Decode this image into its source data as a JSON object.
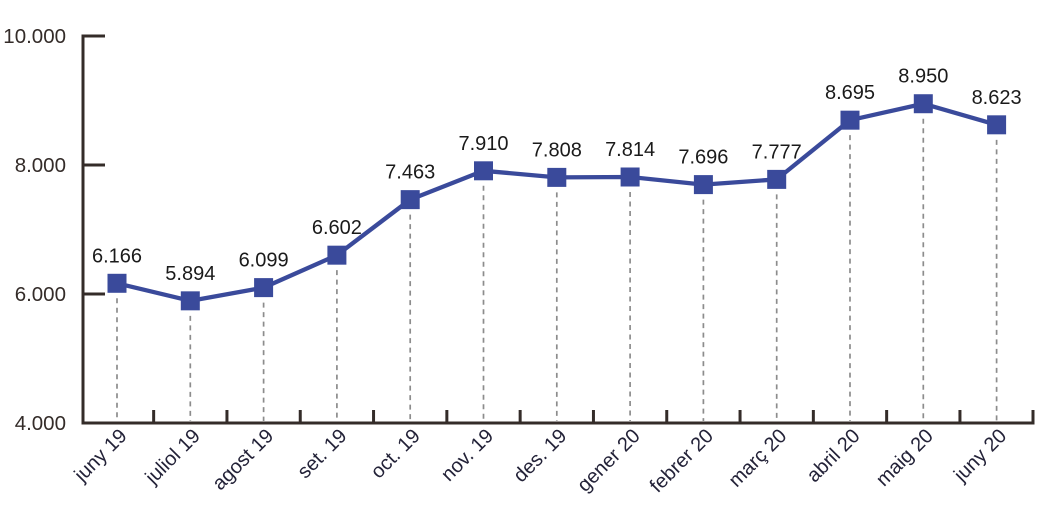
{
  "chart_data": {
    "type": "line",
    "title": "",
    "xlabel": "",
    "ylabel": "",
    "categories": [
      "juny 19",
      "juliol 19",
      "agost 19",
      "set. 19",
      "oct. 19",
      "nov. 19",
      "des. 19",
      "gener 20",
      "febrer 20",
      "març 20",
      "abril 20",
      "maig 20",
      "juny 20"
    ],
    "values": [
      6166,
      5894,
      6099,
      6602,
      7463,
      7910,
      7808,
      7814,
      7696,
      7777,
      8695,
      8950,
      8623
    ],
    "value_labels": [
      "6.166",
      "5.894",
      "6.099",
      "6.602",
      "7.463",
      "7.910",
      "7.808",
      "7.814",
      "7.696",
      "7.777",
      "8.695",
      "8.950",
      "8.623"
    ],
    "ylim": [
      4000,
      10000
    ],
    "y_ticks": [
      {
        "value": 4000,
        "label": "4.000"
      },
      {
        "value": 6000,
        "label": "6.000"
      },
      {
        "value": 8000,
        "label": "8.000"
      },
      {
        "value": 10000,
        "label": "10.000"
      }
    ],
    "grid": "off",
    "legend_position": "none",
    "marker_shape": "square",
    "drop_lines": "dashed-vertical",
    "colors": {
      "series_line": "#3a4a9b",
      "marker_fill": "#3a4a9b",
      "axis": "#342c29",
      "y_tick_label": "#342c29",
      "x_tick_label": "#232238",
      "value_label": "#1a1a1a",
      "drop_line": "#8c8c8c",
      "background": "#ffffff"
    }
  }
}
